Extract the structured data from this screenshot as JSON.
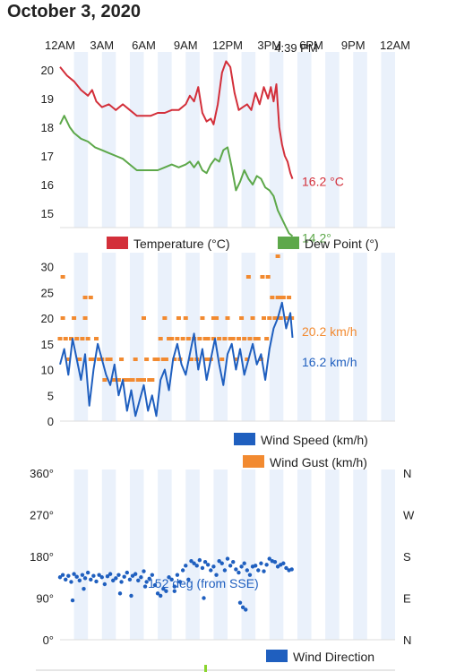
{
  "page": {
    "title": "October 3, 2020"
  },
  "colors": {
    "temperature": "#d32f3a",
    "dew_point": "#5da84a",
    "wind_speed": "#1f5fbf",
    "wind_gust": "#f28a30",
    "wind_direction": "#1f5fbf",
    "band": "#eaf1fb",
    "axis_line": "#888888",
    "current_marker": "#8bd52f"
  },
  "chart_data": [
    {
      "type": "line",
      "x_ticks": [
        "12AM",
        "3AM",
        "6AM",
        "9AM",
        "12PM",
        "3PM",
        "6PM",
        "9PM",
        "12AM"
      ],
      "current_time": "4:39 PM",
      "current_hour": 16.65,
      "xlim": [
        0,
        24
      ],
      "ylim": [
        14.5,
        20.5
      ],
      "y_ticks": [
        15,
        16,
        17,
        18,
        19,
        20
      ],
      "series": [
        {
          "name": "Temperature (°C)",
          "current_label": "16.2 °C",
          "x": [
            0.0,
            0.5,
            1.0,
            1.5,
            2.0,
            2.3,
            2.6,
            3.0,
            3.5,
            4.0,
            4.5,
            5.0,
            5.5,
            6.0,
            6.5,
            7.0,
            7.5,
            8.0,
            8.5,
            9.0,
            9.3,
            9.6,
            9.9,
            10.2,
            10.5,
            10.8,
            11.0,
            11.3,
            11.6,
            11.9,
            12.2,
            12.5,
            12.8,
            13.1,
            13.4,
            13.7,
            14.0,
            14.3,
            14.6,
            14.9,
            15.1,
            15.3,
            15.5,
            15.7,
            15.9,
            16.1,
            16.3,
            16.5,
            16.65
          ],
          "y": [
            20.1,
            19.8,
            19.6,
            19.3,
            19.1,
            19.3,
            18.9,
            18.7,
            18.8,
            18.6,
            18.8,
            18.6,
            18.4,
            18.4,
            18.4,
            18.5,
            18.5,
            18.6,
            18.6,
            18.8,
            19.1,
            18.9,
            19.4,
            18.5,
            18.2,
            18.3,
            18.1,
            18.8,
            19.9,
            20.3,
            20.1,
            19.2,
            18.6,
            18.7,
            18.8,
            18.6,
            19.2,
            18.8,
            19.4,
            19.0,
            19.4,
            18.9,
            19.5,
            18.0,
            17.4,
            17.0,
            16.8,
            16.4,
            16.2
          ]
        },
        {
          "name": "Dew Point (°)",
          "current_label": "14.2°",
          "x": [
            0.0,
            0.3,
            0.7,
            1.0,
            1.5,
            2.0,
            2.5,
            3.0,
            3.5,
            4.0,
            4.5,
            5.0,
            5.5,
            6.0,
            6.5,
            7.0,
            7.5,
            8.0,
            8.5,
            9.0,
            9.3,
            9.6,
            9.9,
            10.2,
            10.5,
            10.8,
            11.1,
            11.4,
            11.7,
            12.0,
            12.3,
            12.6,
            12.9,
            13.2,
            13.5,
            13.8,
            14.1,
            14.4,
            14.7,
            15.0,
            15.3,
            15.6,
            15.9,
            16.2,
            16.4,
            16.65
          ],
          "y": [
            18.1,
            18.4,
            18.0,
            17.8,
            17.6,
            17.5,
            17.3,
            17.2,
            17.1,
            17.0,
            16.9,
            16.7,
            16.5,
            16.5,
            16.5,
            16.5,
            16.6,
            16.7,
            16.6,
            16.7,
            16.8,
            16.6,
            16.8,
            16.5,
            16.4,
            16.7,
            16.9,
            16.8,
            17.2,
            17.3,
            16.6,
            15.8,
            16.1,
            16.5,
            16.2,
            16.0,
            16.3,
            16.2,
            15.9,
            15.8,
            15.6,
            15.1,
            14.8,
            14.5,
            14.3,
            14.2
          ]
        }
      ]
    },
    {
      "type": "line",
      "xlim": [
        0,
        24
      ],
      "ylim": [
        0,
        32
      ],
      "y_ticks": [
        0,
        5,
        10,
        15,
        20,
        25,
        30
      ],
      "series": [
        {
          "name": "Wind Speed (km/h)",
          "current_label": "16.2 km/h",
          "x": [
            0.0,
            0.3,
            0.6,
            0.9,
            1.2,
            1.5,
            1.8,
            2.1,
            2.4,
            2.7,
            3.0,
            3.3,
            3.6,
            3.9,
            4.2,
            4.5,
            4.8,
            5.1,
            5.4,
            5.7,
            6.0,
            6.3,
            6.6,
            6.9,
            7.2,
            7.5,
            7.8,
            8.1,
            8.4,
            8.7,
            9.0,
            9.3,
            9.6,
            9.9,
            10.2,
            10.5,
            10.8,
            11.1,
            11.4,
            11.7,
            12.0,
            12.3,
            12.6,
            12.9,
            13.2,
            13.5,
            13.8,
            14.1,
            14.4,
            14.7,
            15.0,
            15.3,
            15.6,
            15.9,
            16.2,
            16.5,
            16.65
          ],
          "y": [
            11,
            14,
            9,
            16,
            12,
            8,
            13,
            3,
            10,
            15,
            12,
            9,
            7,
            11,
            5,
            8,
            2,
            6,
            1,
            4,
            7,
            2,
            5,
            1,
            8,
            10,
            6,
            12,
            15,
            11,
            9,
            13,
            17,
            10,
            14,
            8,
            12,
            16,
            11,
            7,
            13,
            15,
            10,
            14,
            9,
            12,
            15,
            11,
            13,
            8,
            14,
            18,
            20,
            23,
            18,
            21,
            16.2
          ]
        },
        {
          "name": "Wind Gust (km/h)",
          "current_label": "20.2 km/h",
          "x": [
            0.0,
            0.2,
            0.4,
            0.6,
            0.8,
            1.0,
            1.2,
            1.4,
            1.6,
            1.8,
            2.0,
            2.2,
            2.4,
            2.6,
            2.8,
            3.0,
            3.2,
            3.4,
            3.6,
            3.8,
            4.0,
            4.2,
            4.4,
            4.6,
            4.8,
            5.0,
            5.2,
            5.4,
            5.6,
            5.8,
            6.0,
            6.2,
            6.4,
            6.6,
            6.8,
            7.0,
            7.2,
            7.4,
            7.6,
            7.8,
            8.0,
            8.2,
            8.4,
            8.6,
            8.8,
            9.0,
            9.2,
            9.4,
            9.6,
            9.8,
            10.0,
            10.2,
            10.4,
            10.6,
            10.8,
            11.0,
            11.2,
            11.4,
            11.6,
            11.8,
            12.0,
            12.2,
            12.4,
            12.6,
            12.8,
            13.0,
            13.2,
            13.4,
            13.6,
            13.8,
            14.0,
            14.2,
            14.4,
            14.6,
            14.8,
            15.0,
            15.2,
            15.4,
            15.6,
            15.8,
            16.0,
            16.2,
            16.4,
            16.6,
            0.2,
            1.8,
            2.2,
            6.0,
            7.5,
            8.5,
            10.5,
            11.0,
            13.5,
            14.5,
            14.9,
            15.6,
            15.9
          ],
          "y": [
            16,
            20,
            16,
            12,
            16,
            20,
            16,
            12,
            16,
            20,
            16,
            12,
            12,
            16,
            12,
            12,
            8,
            12,
            12,
            8,
            8,
            8,
            12,
            8,
            8,
            8,
            8,
            12,
            8,
            8,
            8,
            12,
            8,
            8,
            12,
            12,
            16,
            12,
            12,
            16,
            16,
            12,
            16,
            12,
            16,
            20,
            16,
            12,
            16,
            12,
            16,
            20,
            16,
            16,
            12,
            16,
            20,
            16,
            12,
            16,
            20,
            16,
            16,
            12,
            16,
            20,
            16,
            12,
            16,
            20,
            16,
            16,
            12,
            20,
            16,
            20,
            24,
            20,
            24,
            20,
            24,
            20,
            24,
            20,
            28,
            24,
            24,
            20,
            20,
            20,
            12,
            20,
            28,
            28,
            28,
            32,
            24
          ]
        }
      ]
    },
    {
      "type": "scatter",
      "xlim": [
        0,
        24
      ],
      "ylim": [
        0,
        360
      ],
      "y_ticks": [
        "0°",
        "90°",
        "180°",
        "270°",
        "360°"
      ],
      "y_right_ticks": [
        "N",
        "E",
        "S",
        "W",
        "N"
      ],
      "current_label": "152 deg (from SSE)",
      "series": [
        {
          "name": "Wind Direction",
          "x": [
            0.0,
            0.2,
            0.4,
            0.6,
            0.8,
            1.0,
            1.2,
            1.4,
            1.6,
            1.8,
            2.0,
            2.2,
            2.4,
            2.6,
            2.8,
            3.0,
            3.2,
            3.4,
            3.6,
            3.8,
            4.0,
            4.2,
            4.4,
            4.6,
            4.8,
            5.0,
            5.2,
            5.4,
            5.6,
            5.8,
            6.0,
            6.2,
            6.4,
            6.6,
            6.8,
            7.0,
            7.2,
            7.4,
            7.6,
            7.8,
            8.0,
            8.2,
            8.4,
            8.6,
            8.8,
            9.0,
            9.2,
            9.4,
            9.6,
            9.8,
            10.0,
            10.2,
            10.4,
            10.6,
            10.8,
            11.0,
            11.2,
            11.4,
            11.6,
            11.8,
            12.0,
            12.2,
            12.4,
            12.6,
            12.8,
            13.0,
            13.2,
            13.4,
            13.6,
            13.8,
            14.0,
            14.2,
            14.4,
            14.6,
            14.8,
            15.0,
            15.2,
            15.4,
            15.6,
            15.8,
            16.0,
            16.2,
            16.4,
            16.6,
            0.9,
            1.7,
            4.3,
            5.1,
            6.1,
            8.2,
            10.3,
            12.9,
            13.1,
            13.3
          ],
          "y": [
            135,
            140,
            130,
            138,
            125,
            142,
            136,
            128,
            140,
            133,
            145,
            130,
            138,
            126,
            140,
            135,
            120,
            137,
            142,
            128,
            133,
            140,
            125,
            136,
            145,
            130,
            138,
            142,
            128,
            135,
            148,
            125,
            132,
            140,
            118,
            100,
            95,
            110,
            105,
            135,
            130,
            115,
            140,
            125,
            150,
            160,
            130,
            170,
            165,
            160,
            172,
            155,
            168,
            162,
            150,
            158,
            140,
            170,
            165,
            150,
            175,
            160,
            168,
            152,
            145,
            158,
            165,
            150,
            140,
            158,
            160,
            150,
            165,
            148,
            162,
            175,
            170,
            168,
            158,
            162,
            165,
            155,
            150,
            152,
            85,
            110,
            100,
            95,
            115,
            105,
            90,
            80,
            70,
            65
          ]
        }
      ]
    }
  ]
}
